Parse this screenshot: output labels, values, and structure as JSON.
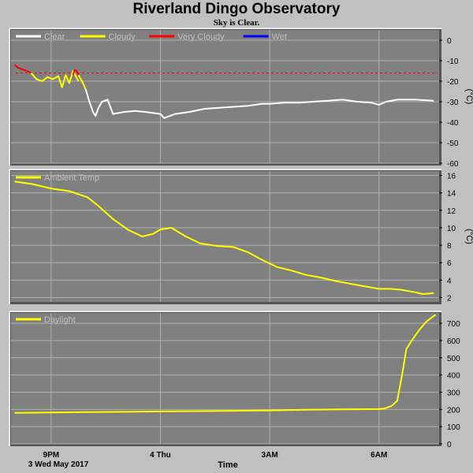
{
  "title": "Riverland Dingo Observatory",
  "subtitle": "Sky is Clear.",
  "footer": {
    "date_label": "3 Wed May 2017",
    "x_axis_title": "Time"
  },
  "colors": {
    "background": "#c0c0c0",
    "plot_bg": "#808080",
    "grid": "#b0b0b0",
    "clear": "#ffffff",
    "cloudy": "#ffff00",
    "very_cloudy": "#ff0000",
    "wet": "#0000ff",
    "ambient": "#ffff00",
    "daylight": "#ffff00",
    "threshold": "#ff0000"
  },
  "chart_data": [
    {
      "type": "line",
      "name": "sky-temperature",
      "ylabel": "(°C)",
      "ylim": [
        -60,
        5
      ],
      "yticks": [
        0,
        -10,
        -20,
        -30,
        -40,
        -50,
        -60
      ],
      "ytick_labels": [
        "0",
        "-10",
        "-20",
        "-30",
        "-40",
        "-50",
        "-60"
      ],
      "xlim": [
        19.9,
        31.65
      ],
      "xticks": [
        21,
        24,
        27,
        30
      ],
      "xtick_labels": [
        "9PM",
        "4 Thu",
        "3AM",
        "6AM"
      ],
      "legend": [
        "Clear",
        "Cloudy",
        "Very Cloudy",
        "Wet"
      ],
      "legend_placement": "top-left",
      "threshold": -16,
      "series": [
        {
          "name": "Very Cloudy",
          "color_key": "very_cloudy",
          "x": [
            20.0,
            20.1,
            20.25,
            20.4,
            20.45
          ],
          "y": [
            -12,
            -13.5,
            -14.5,
            -15.5,
            -16
          ]
        },
        {
          "name": "Cloudy",
          "color_key": "cloudy",
          "x": [
            20.45,
            20.6,
            20.75,
            20.9,
            21.05,
            21.2,
            21.3,
            21.4,
            21.5,
            21.6,
            21.75
          ],
          "y": [
            -16,
            -19,
            -20,
            -18,
            -19,
            -17.5,
            -23,
            -17,
            -21,
            -15,
            -20
          ]
        },
        {
          "name": "Very Cloudy",
          "color_key": "very_cloudy",
          "x": [
            21.6,
            21.65,
            21.7,
            21.75
          ],
          "y": [
            -17,
            -14.5,
            -15,
            -17
          ]
        },
        {
          "name": "Cloudy",
          "color_key": "cloudy",
          "x": [
            21.75,
            21.85,
            21.95
          ],
          "y": [
            -17,
            -20,
            -24
          ]
        },
        {
          "name": "Clear",
          "color_key": "clear",
          "x": [
            21.95,
            22.05,
            22.15,
            22.22,
            22.3,
            22.4,
            22.55,
            22.7,
            23.0,
            23.3,
            23.6,
            24.0,
            24.1,
            24.4,
            24.8,
            25.2,
            25.6,
            26.0,
            26.4,
            26.8,
            27.0,
            27.4,
            27.8,
            28.2,
            28.6,
            29.0,
            29.4,
            29.8,
            30.0,
            30.2,
            30.5,
            31.0,
            31.5
          ],
          "y": [
            -24,
            -30,
            -35,
            -37,
            -33,
            -30,
            -29,
            -36,
            -35,
            -34.5,
            -35,
            -36,
            -38,
            -36,
            -35,
            -33.5,
            -33,
            -32.5,
            -32,
            -31,
            -31,
            -30.5,
            -30.5,
            -30,
            -29.5,
            -29,
            -30,
            -30.5,
            -31.5,
            -30,
            -29,
            -29,
            -29.5
          ]
        }
      ]
    },
    {
      "type": "line",
      "name": "ambient-temperature",
      "ylabel": "(°C)",
      "ylim": [
        1.5,
        16.5
      ],
      "yticks": [
        16,
        14,
        12,
        10,
        8,
        6,
        4,
        2
      ],
      "ytick_labels": [
        "16",
        "14",
        "12",
        "10",
        "8",
        "6",
        "4",
        "2"
      ],
      "xlim": [
        19.9,
        31.65
      ],
      "xticks": [
        21,
        24,
        27,
        30
      ],
      "xtick_labels": [
        "9PM",
        "4 Thu",
        "3AM",
        "6AM"
      ],
      "legend": [
        "Ambient Temp"
      ],
      "legend_placement": "top-left",
      "series": [
        {
          "name": "Ambient Temp",
          "color_key": "ambient",
          "x": [
            20.0,
            20.5,
            21.0,
            21.5,
            22.0,
            22.3,
            22.7,
            23.1,
            23.5,
            23.8,
            24.0,
            24.3,
            24.7,
            25.1,
            25.6,
            26.0,
            26.4,
            26.8,
            27.2,
            27.6,
            28.0,
            28.4,
            28.8,
            29.2,
            29.6,
            30.0,
            30.3,
            30.6,
            31.0,
            31.2,
            31.5
          ],
          "y": [
            15.3,
            15.0,
            14.5,
            14.2,
            13.5,
            12.5,
            11.0,
            9.8,
            9.0,
            9.3,
            9.8,
            10.0,
            9.0,
            8.2,
            7.9,
            7.8,
            7.2,
            6.3,
            5.5,
            5.1,
            4.6,
            4.3,
            3.9,
            3.6,
            3.3,
            3.0,
            3.0,
            2.9,
            2.6,
            2.4,
            2.5
          ]
        }
      ]
    },
    {
      "type": "line",
      "name": "daylight",
      "ylabel": "",
      "ylim": [
        0,
        760
      ],
      "yticks": [
        700,
        600,
        500,
        400,
        300,
        200,
        100,
        0
      ],
      "ytick_labels": [
        "700",
        "600",
        "500",
        "400",
        "300",
        "200",
        "100",
        "0"
      ],
      "xlim": [
        19.9,
        31.65
      ],
      "xticks": [
        21,
        24,
        27,
        30
      ],
      "xtick_labels": [
        "9PM",
        "4 Thu",
        "3AM",
        "6AM"
      ],
      "legend": [
        "Daylight"
      ],
      "legend_placement": "top-left",
      "series": [
        {
          "name": "Daylight",
          "color_key": "daylight",
          "x": [
            20.0,
            21.0,
            22.0,
            23.0,
            24.0,
            25.0,
            26.0,
            27.0,
            28.0,
            29.0,
            30.0,
            30.15,
            30.35,
            30.5,
            30.65,
            30.75,
            30.9,
            31.1,
            31.3,
            31.55
          ],
          "y": [
            180,
            182,
            184,
            186,
            188,
            190,
            192,
            194,
            198,
            200,
            202,
            205,
            220,
            250,
            420,
            550,
            600,
            660,
            710,
            750
          ]
        }
      ]
    }
  ]
}
